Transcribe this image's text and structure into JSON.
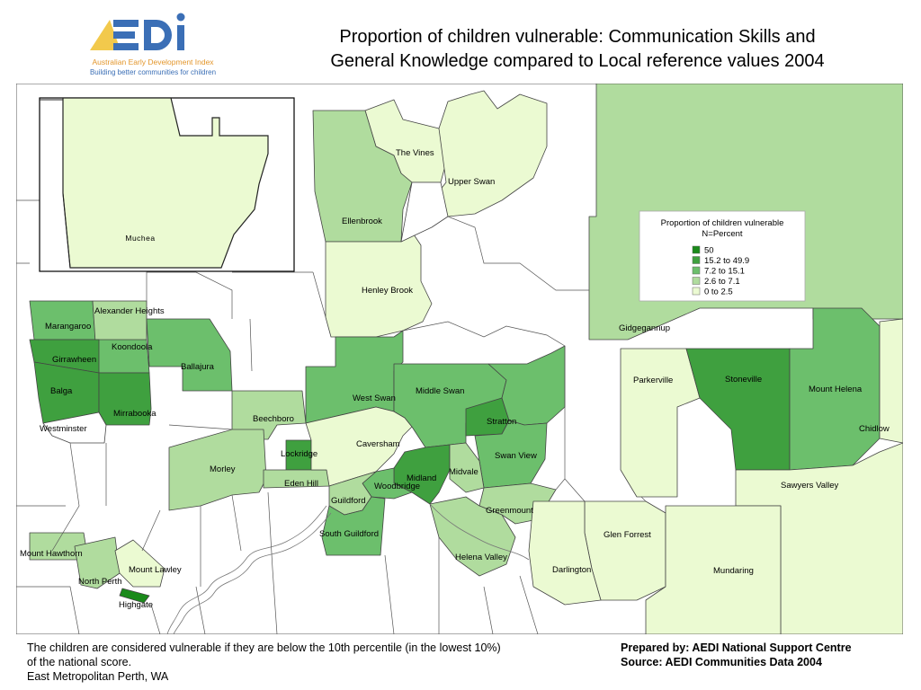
{
  "header": {
    "logo": {
      "name": "AEDI",
      "org_line": "Australian Early Development Index",
      "tagline": "Building better communities for children"
    },
    "title_line1": "Proportion of children vulnerable: Communication Skills and",
    "title_line2": "General Knowledge compared to Local reference values 2004"
  },
  "map": {
    "inset_label": "Muchea",
    "colors": {
      "c50": "#1a8a1a",
      "c15_2_49_9": "#3fa03f",
      "c7_2_15_1": "#6cbf6c",
      "c2_6_7_1": "#b0dc9e",
      "c0_2_5": "#ebfad2",
      "none": "#ffffff",
      "boundary": "#444444",
      "river": "#777777"
    },
    "legend": {
      "title": "Proportion of children vulnerable",
      "subtitle": "N=Percent",
      "entries": [
        {
          "label": "50",
          "color": "#1a8a1a"
        },
        {
          "label": "15.2 to 49.9",
          "color": "#3fa03f"
        },
        {
          "label": "7.2 to 15.1",
          "color": "#6cbf6c"
        },
        {
          "label": "2.6 to   7.1",
          "color": "#b0dc9e"
        },
        {
          "label": "0    to   2.5",
          "color": "#ebfad2"
        }
      ]
    },
    "suburbs": {
      "the_vines": "The Vines",
      "upper_swan": "Upper Swan",
      "ellenbrook": "Ellenbrook",
      "henley_brook": "Henley Brook",
      "gidgegannup": "Gidgegannup",
      "alexander_heights": "Alexander Heights",
      "marangaroo": "Marangaroo",
      "koondoola": "Koondoola",
      "girrawheen": "Girrawheen",
      "ballajura": "Ballajura",
      "balga": "Balga",
      "mirrabooka": "Mirrabooka",
      "westminster": "Westminster",
      "beechboro": "Beechboro",
      "west_swan": "West Swan",
      "middle_swan": "Middle Swan",
      "stratton": "Stratton",
      "caversham": "Caversham",
      "lockridge": "Lockridge",
      "morley": "Morley",
      "eden_hill": "Eden Hill",
      "midland": "Midland",
      "midvale": "Midvale",
      "swan_view": "Swan View",
      "woodbridge": "Woodbridge",
      "guildford": "Guildford",
      "greenmount": "Greenmount",
      "south_guildford": "South Guildford",
      "helena_valley": "Helena Valley",
      "parkerville": "Parkerville",
      "stoneville": "Stoneville",
      "mount_helena": "Mount Helena",
      "chidlow": "Chidlow",
      "sawyers_valley": "Sawyers Valley",
      "glen_forrest": "Glen Forrest",
      "darlington": "Darlington",
      "mundaring": "Mundaring",
      "mount_hawthorn": "Mount Hawthorn",
      "north_perth": "North Perth",
      "mount_lawley": "Mount Lawley",
      "highgate": "Highgate"
    }
  },
  "footer": {
    "note_line1": "The children are considered vulnerable if they are below the 10th percentile (in the lowest 10%)",
    "note_line2": "of the national score.",
    "note_line3": "East Metropolitan Perth, WA",
    "prepared_by": "Prepared by: AEDI National Support Centre",
    "source": "Source: AEDI Communities Data 2004"
  }
}
